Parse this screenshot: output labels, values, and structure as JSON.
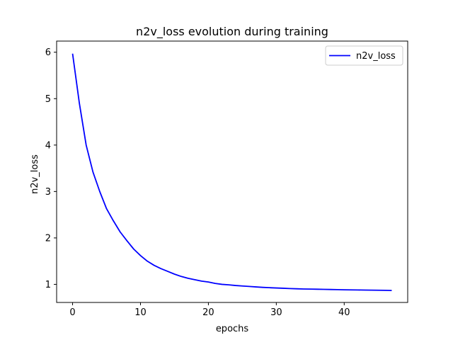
{
  "chart_data": {
    "type": "line",
    "title": "n2v_loss evolution during training",
    "xlabel": "epochs",
    "ylabel": "n2v_loss",
    "xlim": [
      -2.35,
      49.35
    ],
    "ylim": [
      0.61,
      6.24
    ],
    "xticks": [
      0,
      10,
      20,
      30,
      40
    ],
    "yticks": [
      1,
      2,
      3,
      4,
      5,
      6
    ],
    "grid": false,
    "legend_position": "top-right",
    "series": [
      {
        "name": "n2v_loss",
        "color": "#0000ff",
        "x": [
          0,
          1,
          2,
          3,
          4,
          5,
          6,
          7,
          8,
          9,
          10,
          11,
          12,
          13,
          14,
          15,
          16,
          17,
          18,
          19,
          20,
          21,
          22,
          23,
          24,
          25,
          26,
          27,
          28,
          29,
          30,
          31,
          32,
          33,
          34,
          35,
          36,
          37,
          38,
          39,
          40,
          41,
          42,
          43,
          44,
          45,
          46,
          47
        ],
        "values": [
          5.97,
          4.9,
          4.0,
          3.42,
          3.0,
          2.63,
          2.37,
          2.13,
          1.94,
          1.76,
          1.62,
          1.5,
          1.41,
          1.34,
          1.28,
          1.22,
          1.17,
          1.13,
          1.1,
          1.07,
          1.05,
          1.02,
          1.0,
          0.99,
          0.975,
          0.965,
          0.955,
          0.945,
          0.935,
          0.928,
          0.922,
          0.916,
          0.91,
          0.905,
          0.9,
          0.898,
          0.895,
          0.892,
          0.889,
          0.886,
          0.883,
          0.881,
          0.879,
          0.877,
          0.875,
          0.873,
          0.871,
          0.868
        ]
      }
    ]
  }
}
